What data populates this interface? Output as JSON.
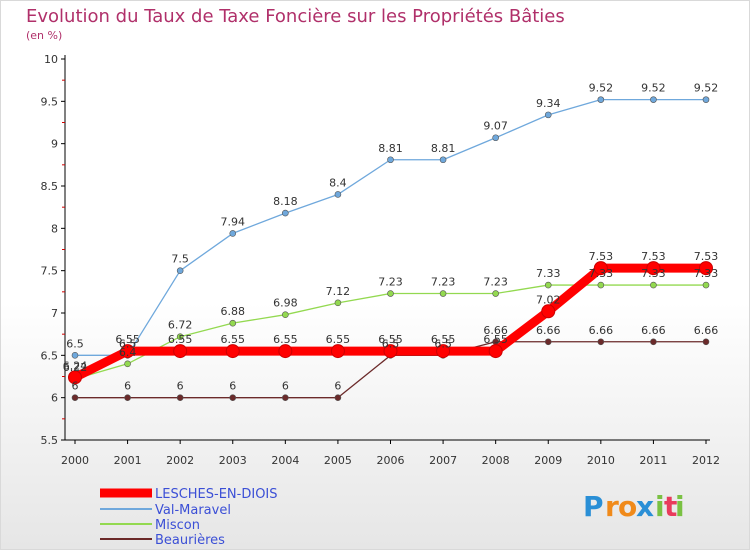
{
  "title": "Evolution du Taux de Taxe Foncière sur les Propriétés Bâties",
  "subtitle": "(en %)",
  "logo": {
    "letters": [
      "P",
      "r",
      "o",
      "x",
      "i",
      "t",
      "i"
    ],
    "colors": [
      "#2a8fd6",
      "#f08a1a",
      "#f08a1a",
      "#2a8fd6",
      "#7ac143",
      "#e93b5c",
      "#7ac143"
    ]
  },
  "chart_data": {
    "type": "line",
    "title": "Evolution du Taux de Taxe Foncière sur les Propriétés Bâties",
    "ylabel": "(en %)",
    "xlabel": "",
    "x": [
      "2000",
      "2001",
      "2002",
      "2003",
      "2004",
      "2005",
      "2006",
      "2007",
      "2008",
      "2009",
      "2010",
      "2011",
      "2012"
    ],
    "ylim": [
      5.5,
      10
    ],
    "yticks": [
      "5.5",
      "6",
      "6.5",
      "7",
      "7.5",
      "8",
      "8.5",
      "9",
      "9.5",
      "10"
    ],
    "legend_position": "bottom-left",
    "series": [
      {
        "name": "LESCHES-EN-DIOIS",
        "color": "#ff0000",
        "values": [
          6.24,
          6.55,
          6.55,
          6.55,
          6.55,
          6.55,
          6.55,
          6.55,
          6.55,
          7.02,
          7.53,
          7.53,
          7.53
        ],
        "labels": [
          "6.24",
          "6.55",
          "6.55",
          "6.55",
          "6.55",
          "6.55",
          "6.55",
          "6.55",
          "6.55",
          "7.02",
          "7.53",
          "7.53",
          "7.53"
        ]
      },
      {
        "name": "Val-Maravel",
        "color": "#6fa8dc",
        "values": [
          6.5,
          6.5,
          7.5,
          7.94,
          8.18,
          8.4,
          8.81,
          8.81,
          9.07,
          9.34,
          9.52,
          9.52,
          9.52
        ],
        "labels": [
          "6.5",
          "6.5",
          "7.5",
          "7.94",
          "8.18",
          "8.4",
          "8.81",
          "8.81",
          "9.07",
          "9.34",
          "9.52",
          "9.52",
          "9.52"
        ]
      },
      {
        "name": "Miscon",
        "color": "#93d950",
        "values": [
          6.22,
          6.4,
          6.72,
          6.88,
          6.98,
          7.12,
          7.23,
          7.23,
          7.23,
          7.33,
          7.33,
          7.33,
          7.33
        ],
        "labels": [
          "6.22",
          "6.4",
          "6.72",
          "6.88",
          "6.98",
          "7.12",
          "7.23",
          "7.23",
          "7.23",
          "7.33",
          "7.33",
          "7.33",
          "7.33"
        ]
      },
      {
        "name": "Beaurières",
        "color": "#6b2a2a",
        "values": [
          6,
          6,
          6,
          6,
          6,
          6,
          6.5,
          6.5,
          6.66,
          6.66,
          6.66,
          6.66,
          6.66
        ],
        "labels": [
          "6",
          "6",
          "6",
          "6",
          "6",
          "6",
          "6.5",
          "6.5",
          "6.66",
          "6.66",
          "6.66",
          "6.66",
          "6.66"
        ]
      }
    ]
  }
}
